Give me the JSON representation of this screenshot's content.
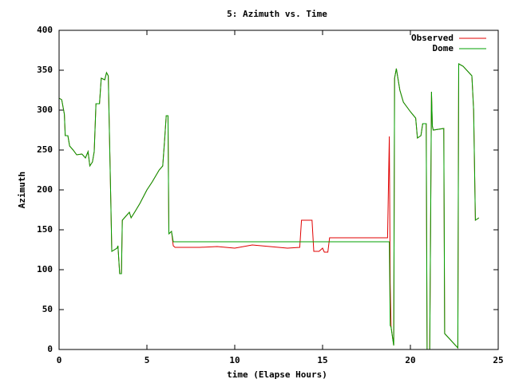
{
  "chart_data": {
    "type": "line",
    "title": "5: Azimuth vs. Time",
    "x_label": "time (Elapse Hours)",
    "y_label": "Azimuth",
    "xlim": [
      0,
      25
    ],
    "xticks": [
      0,
      5,
      10,
      15,
      20,
      25
    ],
    "ylim": [
      0,
      400
    ],
    "yticks": [
      0,
      50,
      100,
      150,
      200,
      250,
      300,
      350,
      400
    ],
    "legend": "top-right",
    "x": [
      0,
      0.15,
      0.3,
      0.35,
      0.5,
      0.6,
      0.8,
      1.0,
      1.3,
      1.5,
      1.65,
      1.75,
      1.9,
      2.0,
      2.1,
      2.3,
      2.4,
      2.6,
      2.7,
      2.8,
      2.95,
      3.0,
      3.3,
      3.35,
      3.45,
      3.55,
      3.6,
      3.8,
      4.0,
      4.1,
      4.3,
      4.6,
      5.0,
      5.3,
      5.7,
      5.9,
      6.0,
      6.1,
      6.2,
      6.25,
      6.4,
      6.5,
      6.6,
      8,
      9,
      10,
      11,
      12,
      13,
      13.7,
      13.8,
      14.4,
      14.5,
      14.8,
      15.0,
      15.1,
      15.3,
      15.4,
      18.7,
      18.8,
      18.85,
      18.9,
      19.05,
      19.1,
      19.2,
      19.4,
      19.6,
      20.0,
      20.3,
      20.4,
      20.6,
      20.7,
      20.9,
      20.95,
      21.1,
      21.15,
      21.2,
      21.25,
      21.3,
      21.9,
      21.95,
      22.7,
      22.75,
      23.0,
      23.5,
      23.6,
      23.7,
      23.9
    ],
    "series": [
      {
        "name": "Observed",
        "color": "#e00000",
        "values": [
          315,
          313,
          295,
          268,
          268,
          255,
          250,
          244,
          245,
          240,
          248,
          230,
          235,
          248,
          308,
          308,
          340,
          338,
          347,
          343,
          180,
          123,
          127,
          130,
          95,
          95,
          162,
          167,
          172,
          165,
          172,
          183,
          200,
          210,
          225,
          230,
          260,
          293,
          293,
          145,
          148,
          130,
          128,
          128,
          129,
          127,
          131,
          129,
          127,
          128,
          162,
          162,
          123,
          123,
          127,
          122,
          122,
          140,
          140,
          267,
          83,
          28,
          5,
          340,
          352,
          325,
          310,
          298,
          290,
          265,
          268,
          283,
          283,
          0,
          0,
          155,
          323,
          280,
          275,
          277,
          20,
          2,
          358,
          355,
          343,
          300,
          162,
          165
        ]
      },
      {
        "name": "Dome",
        "color": "#00a000",
        "values": [
          315,
          313,
          295,
          268,
          268,
          255,
          250,
          244,
          245,
          240,
          248,
          230,
          235,
          248,
          308,
          308,
          340,
          338,
          347,
          343,
          180,
          123,
          127,
          130,
          95,
          95,
          162,
          167,
          172,
          165,
          172,
          183,
          200,
          210,
          225,
          230,
          260,
          293,
          293,
          145,
          148,
          135,
          135,
          135,
          135,
          135,
          135,
          135,
          135,
          135,
          135,
          135,
          135,
          135,
          135,
          135,
          135,
          135,
          135,
          135,
          30,
          28,
          5,
          340,
          352,
          325,
          310,
          298,
          290,
          265,
          268,
          283,
          283,
          0,
          0,
          155,
          323,
          280,
          275,
          277,
          20,
          2,
          358,
          355,
          343,
          300,
          162,
          165
        ]
      }
    ]
  }
}
